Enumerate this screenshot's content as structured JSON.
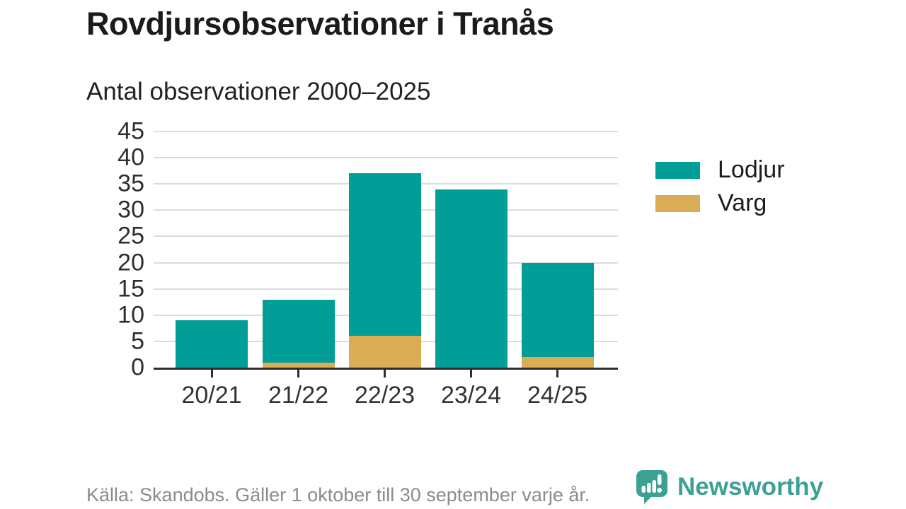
{
  "header": {
    "title": "Rovdjursobservationer i Tranås",
    "subtitle": "Antal observationer 2000–2025"
  },
  "chart_data": {
    "type": "bar",
    "stacked": true,
    "title": "Rovdjursobservationer i Tranås",
    "subtitle": "Antal observationer 2000–2025",
    "xlabel": "",
    "ylabel": "",
    "categories": [
      "20/21",
      "21/22",
      "22/23",
      "23/24",
      "24/25"
    ],
    "series": [
      {
        "name": "Lodjur",
        "color": "#009e96",
        "values": [
          9,
          12,
          31,
          34,
          18
        ]
      },
      {
        "name": "Varg",
        "color": "#d9ac55",
        "values": [
          0,
          1,
          6,
          0,
          2
        ]
      }
    ],
    "stack_bottom_to_top": [
      "Varg",
      "Lodjur"
    ],
    "totals": [
      9,
      13,
      37,
      34,
      20
    ],
    "ylim": [
      0,
      45
    ],
    "ytick_step": 5,
    "grid": true,
    "legend_position": "right",
    "axis_color": "#2d2d2d",
    "gridline_color": "#dcdcdc"
  },
  "footer": {
    "source_note": "Källa: Skandobs. Gäller 1 oktober till 30 september varje år."
  },
  "brand": {
    "wordmark": "Newsworthy",
    "color": "#3ba195",
    "icon": "newsworthy-speech-bubble-bar-chart-icon"
  }
}
